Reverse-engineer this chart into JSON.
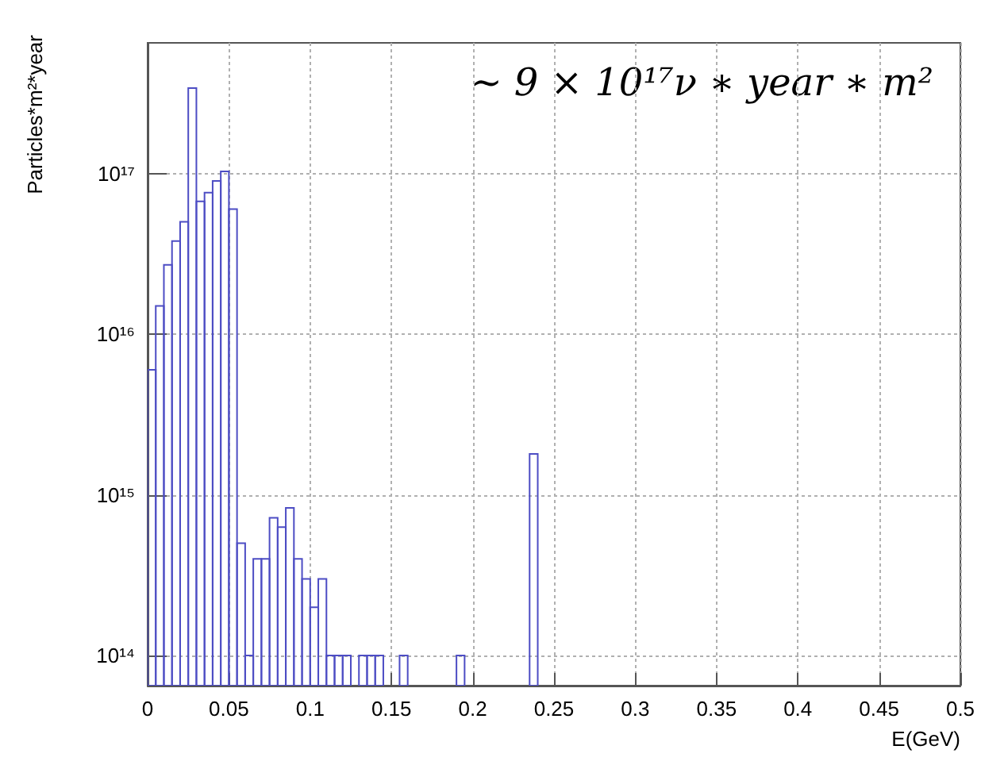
{
  "chart_data": {
    "type": "histogram",
    "xlabel": "E(GeV)",
    "ylabel": "Particles*m²*year",
    "annotations": [
      "~ 9 × 10¹⁷ν ∗ year ∗ m²"
    ],
    "bins": [
      0,
      0.005,
      0.01,
      0.015,
      0.02,
      0.025,
      0.03,
      0.035,
      0.04,
      0.045,
      0.05,
      0.055,
      0.06,
      0.065,
      0.07,
      0.075,
      0.08,
      0.085,
      0.09,
      0.095,
      0.1,
      0.105,
      0.11,
      0.115,
      0.12,
      0.125,
      0.13,
      0.135,
      0.14,
      0.145,
      0.155,
      0.16,
      0.19,
      0.195,
      0.235,
      0.24
    ],
    "values": [
      6000000000000000.0,
      1.5e+16,
      2.7e+16,
      3.8e+16,
      5e+16,
      3.4e+17,
      6.7e+16,
      7.6e+16,
      9e+16,
      1.03e+17,
      6e+16,
      500000000000000.0,
      100000000000000.0,
      400000000000000.0,
      400000000000000.0,
      720000000000000.0,
      630000000000000.0,
      830000000000000.0,
      400000000000000.0,
      300000000000000.0,
      200000000000000.0,
      300000000000000.0,
      100000000000000.0,
      100000000000000.0,
      100000000000000.0,
      null,
      100000000000000.0,
      100000000000000.0,
      100000000000000.0,
      null,
      100000000000000.0,
      null,
      100000000000000.0,
      null,
      1800000000000000.0
    ],
    "color": "#4d4dc4",
    "log": "y",
    "grid": true,
    "xlim": [
      0,
      0.5
    ],
    "xticks": [
      0,
      0.05,
      0.1,
      0.15,
      0.2,
      0.25,
      0.3,
      0.35,
      0.4,
      0.45,
      0.5
    ],
    "ylim": [
      65000000000000.0,
      6.5e+17
    ],
    "yticks": [
      {
        "value": 100000000000000.0,
        "label": "10¹⁴"
      },
      {
        "value": 1000000000000000.0,
        "label": "10¹⁵"
      },
      {
        "value": 1e+16,
        "label": "10¹⁶"
      },
      {
        "value": 1e+17,
        "label": "10¹⁷"
      }
    ]
  }
}
